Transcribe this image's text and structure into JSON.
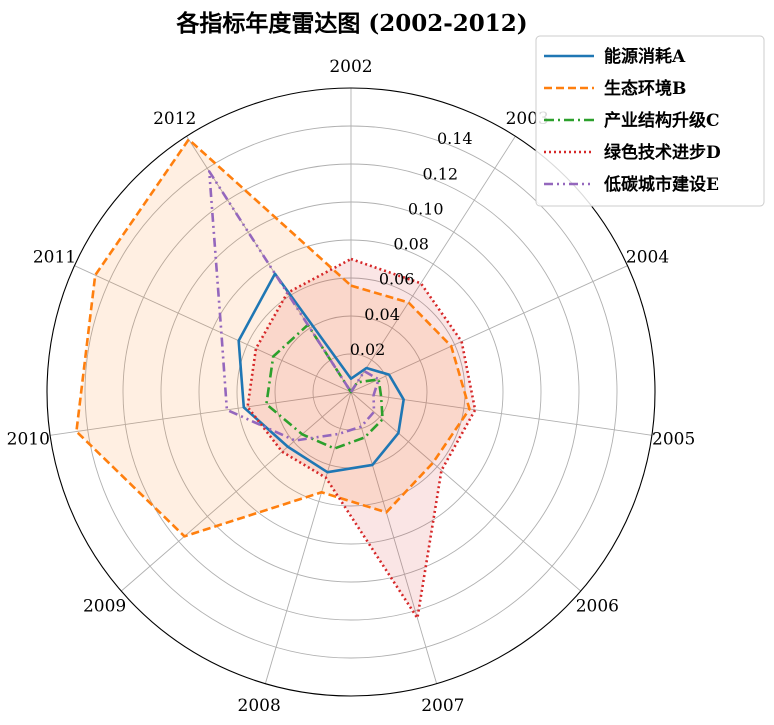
{
  "chart_data": {
    "type": "radar",
    "title": "各指标年度雷达图 (2002-2012)",
    "categories": [
      "2002",
      "2003",
      "2004",
      "2005",
      "2006",
      "2007",
      "2008",
      "2009",
      "2010",
      "2011",
      "2012"
    ],
    "rlim": [
      0,
      0.16
    ],
    "rticks": [
      0.02,
      0.04,
      0.06,
      0.08,
      0.1,
      0.12,
      0.14
    ],
    "rtick_labels": [
      "0.02",
      "0.04",
      "0.06",
      "0.08",
      "0.10",
      "0.12",
      "0.14"
    ],
    "grid": true,
    "legend_position": "top-right",
    "series": [
      {
        "name": "能源消耗A",
        "color": "#1f77b4",
        "dash": "solid",
        "fill": false,
        "values": [
          0.007,
          0.015,
          0.022,
          0.028,
          0.033,
          0.04,
          0.044,
          0.044,
          0.057,
          0.065,
          0.074
        ]
      },
      {
        "name": "生态环境B",
        "color": "#ff7f0e",
        "dash": "dashed",
        "fill": true,
        "values": [
          0.056,
          0.056,
          0.058,
          0.063,
          0.057,
          0.066,
          0.055,
          0.116,
          0.146,
          0.148,
          0.158
        ]
      },
      {
        "name": "产业结构升级C",
        "color": "#2ca02c",
        "dash": "dashdot",
        "fill": false,
        "values": [
          0.0,
          0.006,
          0.016,
          0.016,
          0.022,
          0.025,
          0.031,
          0.034,
          0.045,
          0.045,
          0.042
        ]
      },
      {
        "name": "绿色技术进步D",
        "color": "#d62728",
        "dash": "dotted",
        "fill": true,
        "values": [
          0.07,
          0.068,
          0.064,
          0.066,
          0.063,
          0.124,
          0.047,
          0.048,
          0.055,
          0.055,
          0.062
        ]
      },
      {
        "name": "低碳城市建设E",
        "color": "#9467bd",
        "dash": "dashdotdot",
        "fill": false,
        "values": [
          0.0,
          0.013,
          0.016,
          0.012,
          0.016,
          0.019,
          0.023,
          0.039,
          0.066,
          0.075,
          0.138
        ]
      }
    ]
  }
}
